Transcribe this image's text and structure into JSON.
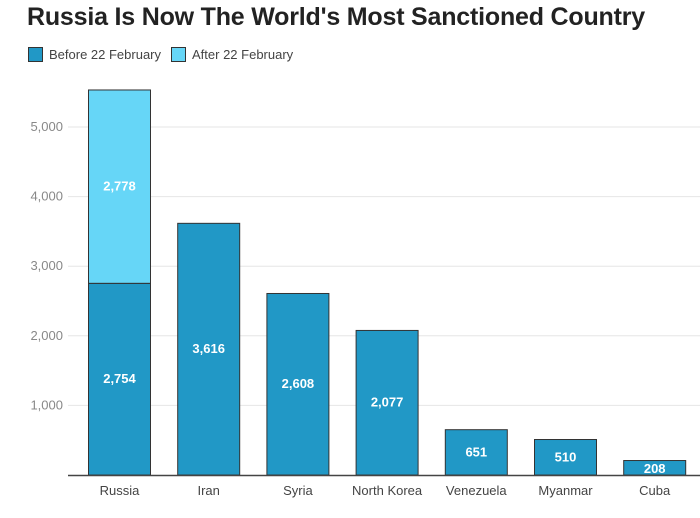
{
  "title": "Russia Is Now The World's Most Sanctioned Country",
  "colors": {
    "before": "#2198c6",
    "after": "#66d6f7",
    "bar_edge": "#333333",
    "grid": "#e6e6e6",
    "axis": "#444444"
  },
  "chart_data": {
    "type": "bar",
    "stacked": true,
    "title": "Russia Is Now The World's Most Sanctioned Country",
    "xlabel": "",
    "ylabel": "",
    "ylim": [
      0,
      5600
    ],
    "yticks": [
      1000,
      2000,
      3000,
      4000,
      5000
    ],
    "ytick_labels": [
      "1,000",
      "2,000",
      "3,000",
      "4,000",
      "5,000"
    ],
    "grid": true,
    "legend_position": "top-left",
    "categories": [
      "Russia",
      "Iran",
      "Syria",
      "North Korea",
      "Venezuela",
      "Myanmar",
      "Cuba"
    ],
    "series": [
      {
        "name": "Before 22 February",
        "color": "#2198c6",
        "values": [
          2754,
          3616,
          2608,
          2077,
          651,
          510,
          208
        ],
        "labels": [
          "2,754",
          "3,616",
          "2,608",
          "2,077",
          "651",
          "510",
          "208"
        ]
      },
      {
        "name": "After 22 February",
        "color": "#66d6f7",
        "values": [
          2778,
          0,
          0,
          0,
          0,
          0,
          0
        ],
        "labels": [
          "2,778",
          "",
          "",
          "",
          "",
          "",
          ""
        ]
      }
    ]
  }
}
